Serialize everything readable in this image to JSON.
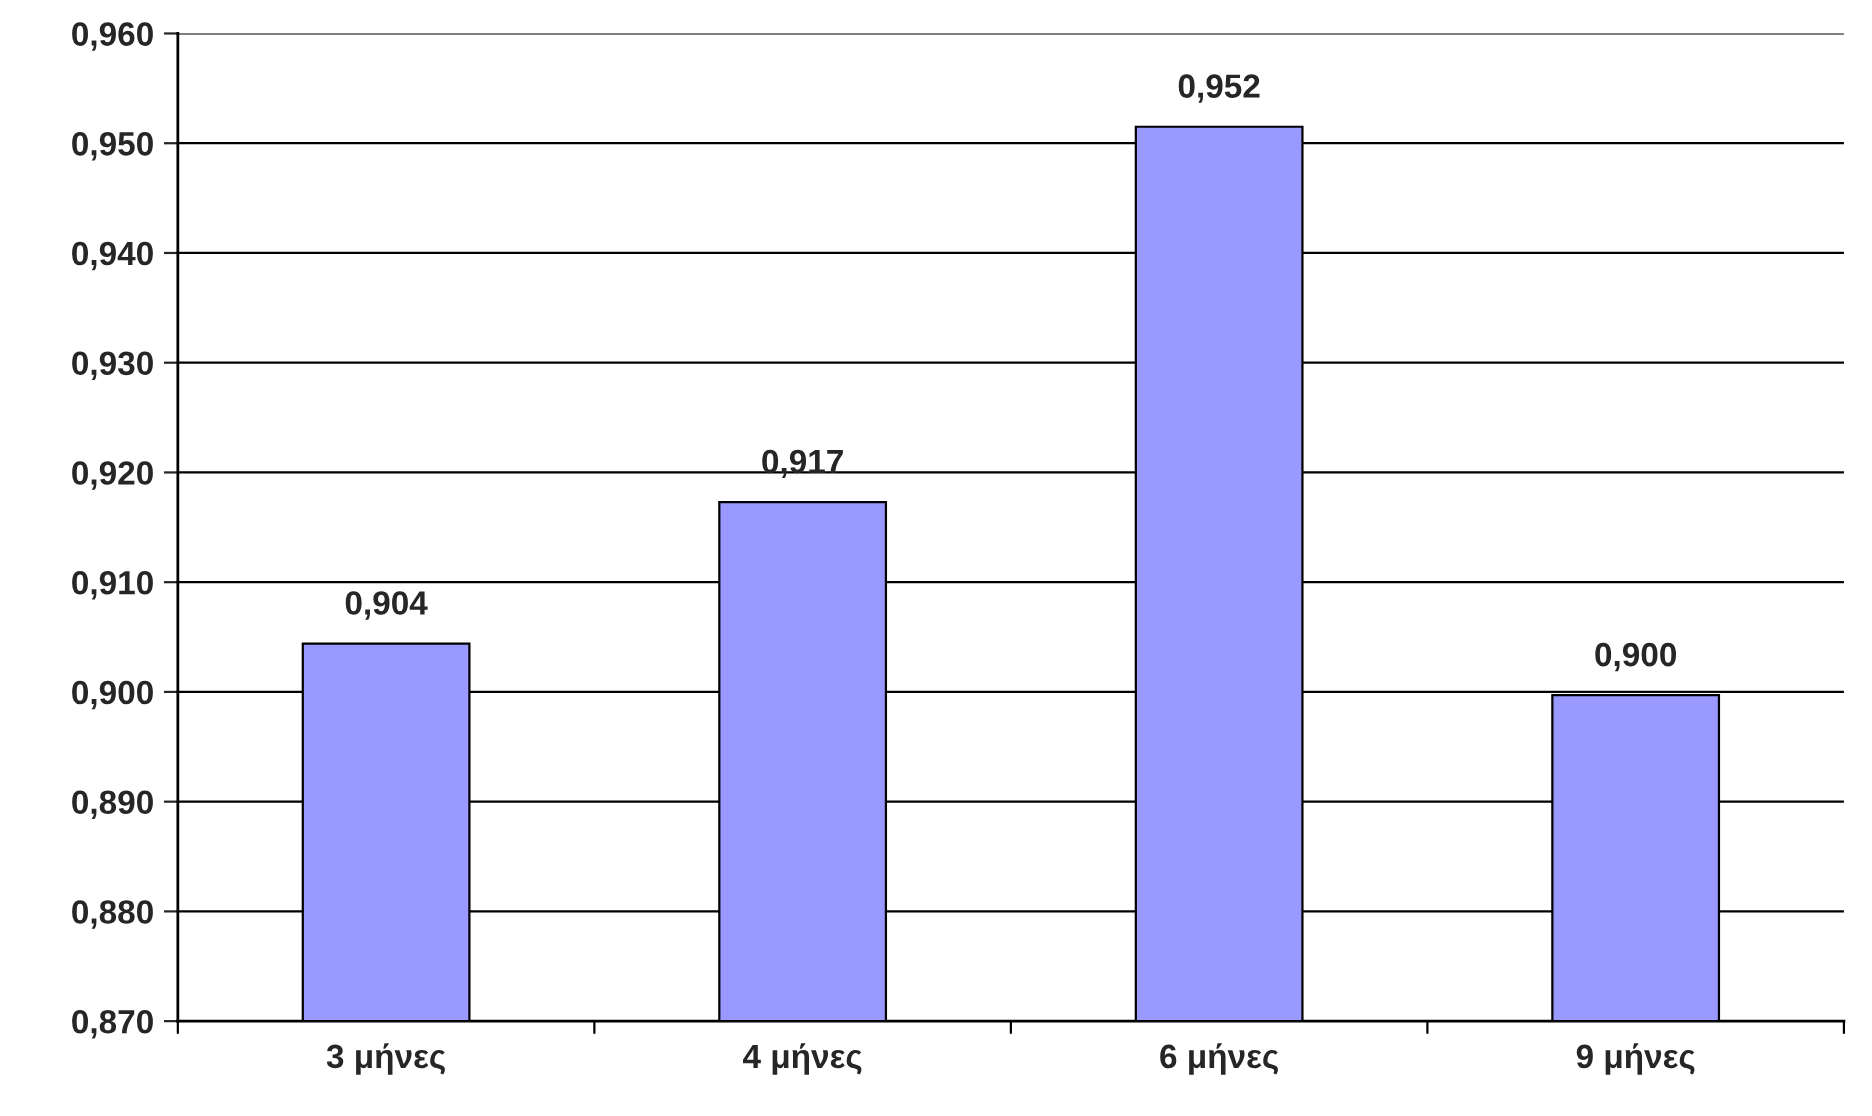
{
  "chart_data": {
    "type": "bar",
    "categories": [
      "3 μήνες",
      "4 μήνες",
      "6 μήνες",
      "9 μήνες"
    ],
    "values": [
      0.9044,
      0.9173,
      0.9515,
      0.8997
    ],
    "value_labels": [
      "0,904",
      "0,917",
      "0,952",
      "0,900"
    ],
    "color": "#9999ff",
    "ylim": [
      0.87,
      0.96
    ],
    "yticks": [
      {
        "value": 0.87,
        "label": "0,870"
      },
      {
        "value": 0.88,
        "label": "0,880"
      },
      {
        "value": 0.89,
        "label": "0,890"
      },
      {
        "value": 0.9,
        "label": "0,900"
      },
      {
        "value": 0.91,
        "label": "0,910"
      },
      {
        "value": 0.92,
        "label": "0,920"
      },
      {
        "value": 0.93,
        "label": "0,930"
      },
      {
        "value": 0.94,
        "label": "0,940"
      },
      {
        "value": 0.95,
        "label": "0,950"
      },
      {
        "value": 0.96,
        "label": "0,960"
      }
    ],
    "grid": "y",
    "legend": false
  }
}
